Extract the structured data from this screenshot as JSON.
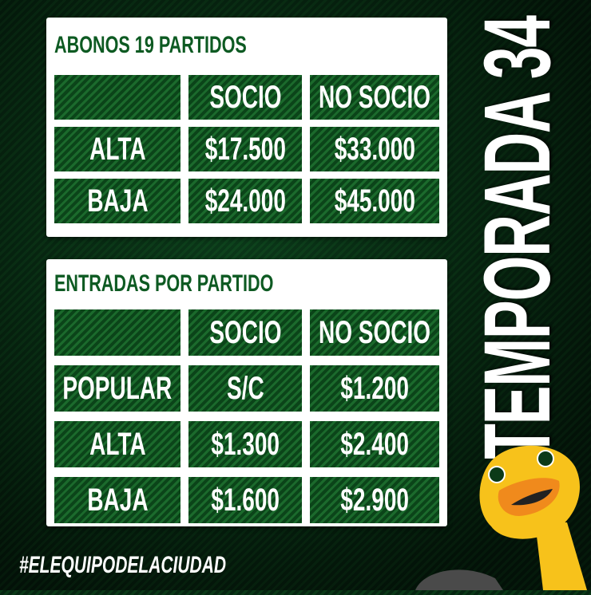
{
  "side_title": "TEMPORADA 34",
  "hashtag": "#ELEQUIPODELACIUDAD",
  "colors": {
    "brand_green": "#0d5a22",
    "panel": "#ffffff",
    "duck_yellow": "#f7c21b",
    "beak_orange": "#f08a1c"
  },
  "abonos": {
    "title": "ABONOS 19 PARTIDOS",
    "headers": [
      "",
      "SOCIO",
      "NO SOCIO"
    ],
    "rows": [
      [
        "ALTA",
        "$17.500",
        "$33.000"
      ],
      [
        "BAJA",
        "$24.000",
        "$45.000"
      ]
    ]
  },
  "entradas": {
    "title": "ENTRADAS POR PARTIDO",
    "headers": [
      "",
      "SOCIO",
      "NO SOCIO"
    ],
    "rows": [
      [
        "POPULAR",
        "S/C",
        "$1.200"
      ],
      [
        "ALTA",
        "$1.300",
        "$2.400"
      ],
      [
        "BAJA",
        "$1.600",
        "$2.900"
      ]
    ]
  }
}
